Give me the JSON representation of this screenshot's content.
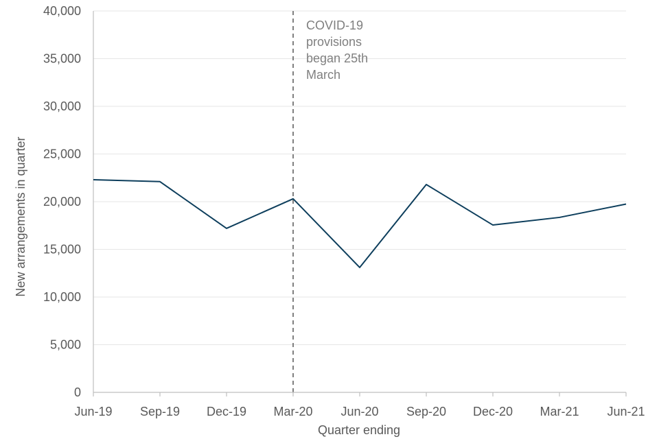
{
  "chart_data": {
    "type": "line",
    "title": "",
    "xlabel": "Quarter ending",
    "ylabel": "New arrangements in quarter",
    "categories": [
      "Jun-19",
      "Sep-19",
      "Dec-19",
      "Mar-20",
      "Jun-20",
      "Sep-20",
      "Dec-20",
      "Mar-21",
      "Jun-21"
    ],
    "series": [
      {
        "values": [
          22300,
          22100,
          17200,
          20300,
          13100,
          21800,
          17550,
          18350,
          19750
        ]
      }
    ],
    "ylim": [
      0,
      40000
    ],
    "yticks": [
      0,
      5000,
      10000,
      15000,
      20000,
      25000,
      30000,
      35000,
      40000
    ],
    "ytick_labels": [
      "0",
      "5,000",
      "10,000",
      "15,000",
      "20,000",
      "25,000",
      "30,000",
      "35,000",
      "40,000"
    ],
    "grid": true,
    "annotations": [
      {
        "type": "vertical-dashed-line",
        "x": "Mar-20",
        "lines": [
          "COVID-19",
          "provisions",
          "began 25th",
          "March"
        ]
      }
    ],
    "colors": {
      "series": "#0d3e5c",
      "annotation_line": "#7f7f7f"
    }
  }
}
